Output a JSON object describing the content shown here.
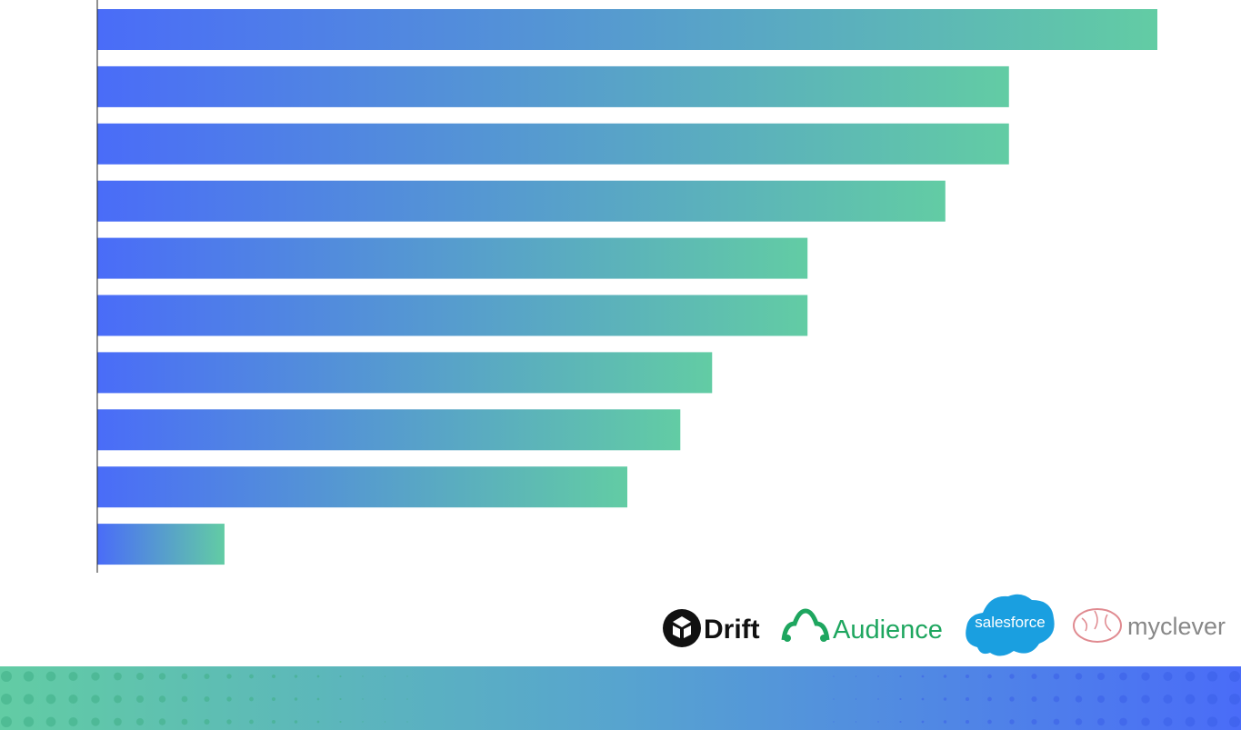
{
  "chart_data": {
    "type": "hbar",
    "categories": [
      null,
      null,
      null,
      null,
      null,
      null,
      null,
      null,
      null,
      null
    ],
    "values": [
      100,
      86,
      86,
      80,
      67,
      67,
      58,
      55,
      50,
      12
    ],
    "xlim": [
      0,
      100
    ],
    "color_start": "#4a6cf8",
    "color_end": "#62cca4"
  },
  "logos": [
    "Drift",
    "Audience",
    "salesforce",
    "myclever"
  ]
}
